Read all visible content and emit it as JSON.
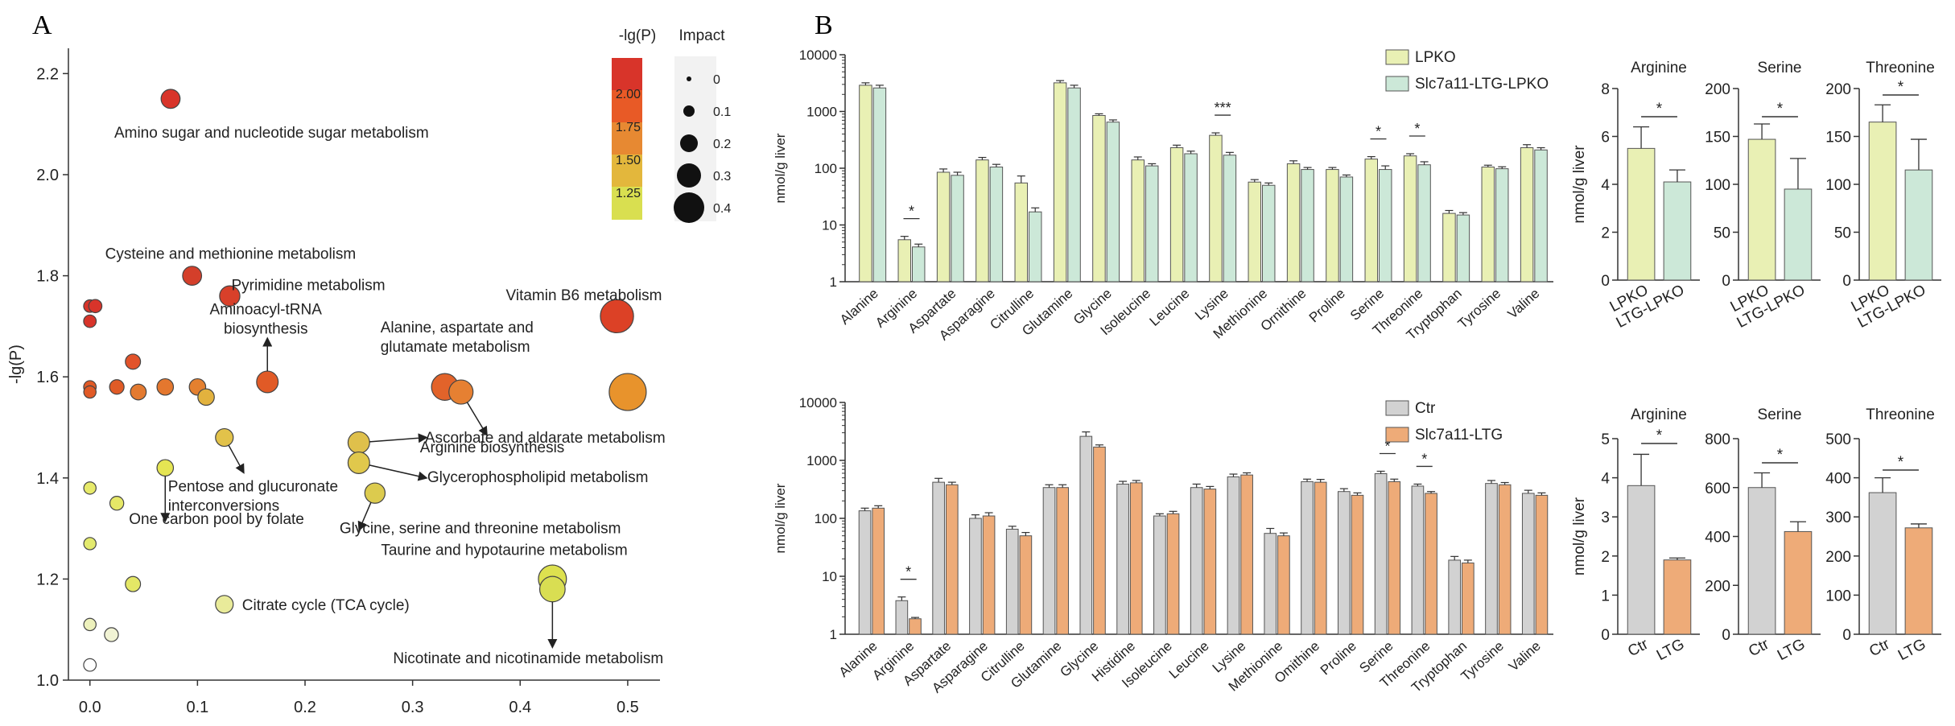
{
  "panel_letters": {
    "a": "A",
    "b": "B"
  },
  "colors": {
    "lpko": "#e9f0b4",
    "ltg_lpko": "#cce8d8",
    "ctr": "#d2d2d2",
    "ltg": "#eeab78",
    "edge": "#555555",
    "bubble_edge": "#444444"
  },
  "chart_data": [
    {
      "id": "A",
      "type": "scatter",
      "title": "",
      "xlabel": "",
      "ylabel": "-lg(P)",
      "xlim": [
        -0.02,
        0.53
      ],
      "ylim": [
        1.0,
        2.25
      ],
      "xticks": [
        "0.0",
        "0.1",
        "0.2",
        "0.3",
        "0.4",
        "0.5"
      ],
      "yticks": [
        "1.0",
        "1.2",
        "1.4",
        "1.6",
        "1.8",
        "2.0",
        "2.2"
      ],
      "color_legend": {
        "title": "-lg(P)",
        "labels": [
          "2.00",
          "1.75",
          "1.50",
          "1.25"
        ],
        "colors": [
          "#d8342a",
          "#e85a26",
          "#e78932",
          "#e3b73c",
          "#d9df50"
        ]
      },
      "size_legend": {
        "title": "Impact",
        "labels": [
          "0",
          "0.1",
          "0.2",
          "0.3",
          "0.4"
        ],
        "values": [
          0,
          0.1,
          0.2,
          0.3,
          0.4
        ]
      },
      "points": [
        {
          "x": 0.075,
          "y": 2.15,
          "impact": 0.06,
          "color": "#d8342a",
          "label": "Amino sugar and nucleotide sugar metabolism"
        },
        {
          "x": 0.095,
          "y": 1.8,
          "impact": 0.06,
          "color": "#d43f2a",
          "label": "Cysteine and methionine metabolism"
        },
        {
          "x": 0.13,
          "y": 1.76,
          "impact": 0.07,
          "color": "#d8402a",
          "label": "Pyrimidine metabolism"
        },
        {
          "x": 0.165,
          "y": 1.59,
          "impact": 0.08,
          "color": "#e15a26",
          "label": "Aminoacyl-tRNA biosynthesis"
        },
        {
          "x": 0.49,
          "y": 1.72,
          "impact": 0.17,
          "color": "#dc4126",
          "label": "Vitamin B6 metabolism"
        },
        {
          "x": 0.33,
          "y": 1.58,
          "impact": 0.12,
          "color": "#e2632a",
          "label": "Alanine, aspartate and glutamate metabolism"
        },
        {
          "x": 0.345,
          "y": 1.57,
          "impact": 0.1,
          "color": "#e68032",
          "label": "Arginine biosynthesis"
        },
        {
          "x": 0.5,
          "y": 1.57,
          "impact": 0.2,
          "color": "#e8932c",
          "label": ""
        },
        {
          "x": 0.25,
          "y": 1.47,
          "impact": 0.08,
          "color": "#dfc04b",
          "label": "Ascorbate and aldarate metabolism"
        },
        {
          "x": 0.25,
          "y": 1.43,
          "impact": 0.08,
          "color": "#e0c84c",
          "label": "Glycerophospholipid metabolism"
        },
        {
          "x": 0.265,
          "y": 1.37,
          "impact": 0.07,
          "color": "#dccb4e",
          "label": "Glycine, serine and threonine metabolism"
        },
        {
          "x": 0.43,
          "y": 1.2,
          "impact": 0.13,
          "color": "#dde14f",
          "label": "Taurine and hypotaurine metabolism"
        },
        {
          "x": 0.43,
          "y": 1.18,
          "impact": 0.11,
          "color": "#d9de52",
          "label": "Nicotinate and nicotinamide metabolism"
        },
        {
          "x": 0.125,
          "y": 1.48,
          "impact": 0.05,
          "color": "#e2c24a",
          "label": "Pentose and glucuronate interconversions"
        },
        {
          "x": 0.07,
          "y": 1.42,
          "impact": 0.04,
          "color": "#e5e553",
          "label": "One carbon pool by folate"
        },
        {
          "x": 0.125,
          "y": 1.15,
          "impact": 0.05,
          "color": "#e9eb9a",
          "label": "Citrate cycle (TCA cycle)"
        },
        {
          "x": 0.0,
          "y": 1.74,
          "impact": 0.01,
          "color": "#d8342a",
          "label": ""
        },
        {
          "x": 0.005,
          "y": 1.74,
          "impact": 0.015,
          "color": "#d8342a",
          "label": ""
        },
        {
          "x": 0.0,
          "y": 1.71,
          "impact": 0.01,
          "color": "#d8342a",
          "label": ""
        },
        {
          "x": 0.0,
          "y": 1.58,
          "impact": 0.01,
          "color": "#e15a26",
          "label": ""
        },
        {
          "x": 0.0,
          "y": 1.57,
          "impact": 0.008,
          "color": "#e15a26",
          "label": ""
        },
        {
          "x": 0.04,
          "y": 1.63,
          "impact": 0.03,
          "color": "#e2532a",
          "label": ""
        },
        {
          "x": 0.025,
          "y": 1.58,
          "impact": 0.025,
          "color": "#e05b26",
          "label": ""
        },
        {
          "x": 0.045,
          "y": 1.57,
          "impact": 0.035,
          "color": "#e37a30",
          "label": ""
        },
        {
          "x": 0.07,
          "y": 1.58,
          "impact": 0.04,
          "color": "#e4772e",
          "label": ""
        },
        {
          "x": 0.1,
          "y": 1.58,
          "impact": 0.04,
          "color": "#e4802f",
          "label": ""
        },
        {
          "x": 0.108,
          "y": 1.56,
          "impact": 0.04,
          "color": "#e2b23e",
          "label": ""
        },
        {
          "x": 0.0,
          "y": 1.38,
          "impact": 0.008,
          "color": "#e7ea6a",
          "label": ""
        },
        {
          "x": 0.025,
          "y": 1.35,
          "impact": 0.02,
          "color": "#e6e867",
          "label": ""
        },
        {
          "x": 0.0,
          "y": 1.27,
          "impact": 0.008,
          "color": "#e3ea6e",
          "label": ""
        },
        {
          "x": 0.04,
          "y": 1.19,
          "impact": 0.03,
          "color": "#e4e766",
          "label": ""
        },
        {
          "x": 0.0,
          "y": 1.11,
          "impact": 0.008,
          "color": "#edf1bc",
          "label": ""
        },
        {
          "x": 0.02,
          "y": 1.09,
          "impact": 0.02,
          "color": "#f1f3d4",
          "label": ""
        },
        {
          "x": 0.0,
          "y": 1.03,
          "impact": 0.01,
          "color": "#ffffff",
          "label": ""
        }
      ]
    },
    {
      "id": "B-top-main",
      "type": "bar",
      "title": "",
      "ylabel": "nmol/g liver",
      "yscale": "log",
      "ylim": [
        1,
        10000
      ],
      "yticks": [
        "1",
        "10",
        "100",
        "1000",
        "10000"
      ],
      "legend_position": "top-right",
      "categories": [
        "Alanine",
        "Arginine",
        "Aspartate",
        "Asparagine",
        "Citrulline",
        "Glutamine",
        "Glycine",
        "Isoleucine",
        "Leucine",
        "Lysine",
        "Methionine",
        "Ornithine",
        "Proline",
        "Serine",
        "Threonine",
        "Tryptophan",
        "Tyrosine",
        "Valine"
      ],
      "series": [
        {
          "name": "LPKO",
          "values": [
            2900,
            5.5,
            85,
            140,
            55,
            3200,
            850,
            140,
            230,
            380,
            57,
            120,
            95,
            145,
            165,
            16,
            105,
            230
          ],
          "errors": [
            300,
            0.8,
            12,
            15,
            18,
            300,
            60,
            18,
            25,
            40,
            6,
            15,
            8,
            15,
            15,
            2,
            8,
            30
          ]
        },
        {
          "name": "Slc7a11-LTG-LPKO",
          "values": [
            2600,
            4.1,
            75,
            105,
            17,
            2600,
            650,
            110,
            180,
            170,
            50,
            95,
            70,
            95,
            115,
            15,
            98,
            210
          ],
          "errors": [
            300,
            0.5,
            10,
            12,
            3,
            300,
            60,
            10,
            20,
            20,
            5,
            8,
            6,
            15,
            15,
            1.5,
            8,
            20
          ]
        }
      ],
      "significance": [
        {
          "category": "Arginine",
          "mark": "*"
        },
        {
          "category": "Lysine",
          "mark": "***"
        },
        {
          "category": "Serine",
          "mark": "*"
        },
        {
          "category": "Threonine",
          "mark": "*"
        }
      ]
    },
    {
      "id": "B-top-arginine",
      "type": "bar",
      "title": "Arginine",
      "ylabel": "nmol/g liver",
      "ylim": [
        0,
        8
      ],
      "yticks": [
        "0",
        "2",
        "4",
        "6",
        "8"
      ],
      "categories": [
        "LPKO",
        "LTG-LPKO"
      ],
      "values": [
        5.5,
        4.1
      ],
      "errors": [
        0.9,
        0.5
      ],
      "significance": "*"
    },
    {
      "id": "B-top-serine",
      "type": "bar",
      "title": "Serine",
      "ylim": [
        0,
        200
      ],
      "yticks": [
        "0",
        "50",
        "100",
        "150",
        "200"
      ],
      "categories": [
        "LPKO",
        "LTG-LPKO"
      ],
      "values": [
        147,
        95
      ],
      "errors": [
        16,
        32
      ],
      "significance": "*"
    },
    {
      "id": "B-top-threonine",
      "type": "bar",
      "title": "Threonine",
      "ylim": [
        0,
        200
      ],
      "yticks": [
        "0",
        "50",
        "100",
        "150",
        "200"
      ],
      "categories": [
        "LPKO",
        "LTG-LPKO"
      ],
      "values": [
        165,
        115
      ],
      "errors": [
        18,
        32
      ],
      "significance": "*"
    },
    {
      "id": "B-bottom-main",
      "type": "bar",
      "title": "",
      "ylabel": "nmol/g liver",
      "yscale": "log",
      "ylim": [
        1,
        10000
      ],
      "yticks": [
        "1",
        "10",
        "100",
        "1000",
        "10000"
      ],
      "legend_position": "top-right",
      "categories": [
        "Alanine",
        "Arginine",
        "Aspartate",
        "Asparagine",
        "Citrulline",
        "Glutamine",
        "Glycine",
        "Histidine",
        "Isoleucine",
        "Leucine",
        "Lysine",
        "Methionine",
        "Omithine",
        "Proline",
        "Serine",
        "Threonine",
        "Tryptophan",
        "Tyrosine",
        "Valine"
      ],
      "series": [
        {
          "name": "Ctr",
          "values": [
            135,
            3.8,
            420,
            100,
            65,
            340,
            2600,
            390,
            110,
            340,
            520,
            55,
            430,
            290,
            590,
            360,
            19,
            400,
            270
          ],
          "errors": [
            15,
            0.6,
            70,
            15,
            8,
            40,
            500,
            45,
            10,
            50,
            60,
            12,
            45,
            35,
            60,
            30,
            3,
            50,
            35
          ]
        },
        {
          "name": "Slc7a11-LTG",
          "values": [
            150,
            1.85,
            380,
            110,
            50,
            340,
            1700,
            410,
            120,
            320,
            560,
            50,
            420,
            250,
            430,
            270,
            17,
            380,
            250
          ],
          "errors": [
            15,
            0.1,
            40,
            15,
            7,
            40,
            150,
            40,
            12,
            35,
            50,
            6,
            50,
            25,
            45,
            20,
            2,
            35,
            25
          ]
        }
      ],
      "significance": [
        {
          "category": "Arginine",
          "mark": "*"
        },
        {
          "category": "Serine",
          "mark": "*"
        },
        {
          "category": "Threonine",
          "mark": "*"
        }
      ]
    },
    {
      "id": "B-bottom-arginine",
      "type": "bar",
      "title": "Arginine",
      "ylabel": "nmol/g liver",
      "ylim": [
        0,
        5
      ],
      "yticks": [
        "0",
        "1",
        "2",
        "3",
        "4",
        "5"
      ],
      "categories": [
        "Ctr",
        "LTG"
      ],
      "values": [
        3.8,
        1.9
      ],
      "errors": [
        0.8,
        0.05
      ],
      "significance": "*"
    },
    {
      "id": "B-bottom-serine",
      "type": "bar",
      "title": "Serine",
      "ylim": [
        0,
        800
      ],
      "yticks": [
        "0",
        "200",
        "400",
        "600",
        "800"
      ],
      "categories": [
        "Ctr",
        "LTG"
      ],
      "values": [
        600,
        420
      ],
      "errors": [
        60,
        40
      ],
      "significance": "*"
    },
    {
      "id": "B-bottom-threonine",
      "type": "bar",
      "title": "Threonine",
      "ylim": [
        0,
        500
      ],
      "yticks": [
        "0",
        "100",
        "200",
        "300",
        "400",
        "500"
      ],
      "categories": [
        "Ctr",
        "LTG"
      ],
      "values": [
        362,
        272
      ],
      "errors": [
        38,
        10
      ],
      "significance": "*"
    }
  ]
}
